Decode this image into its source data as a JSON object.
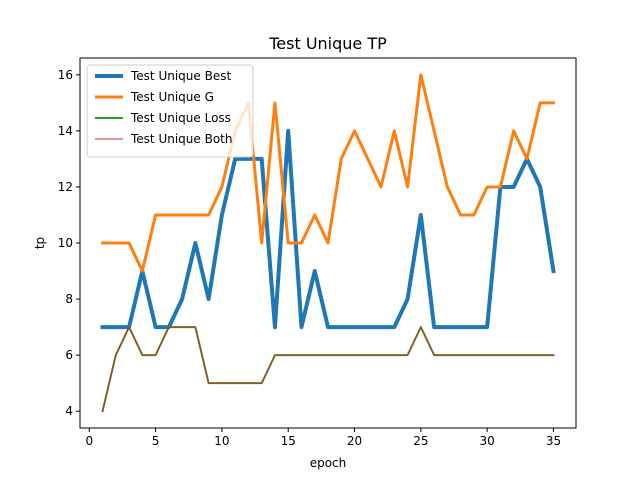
{
  "chart_data": {
    "type": "line",
    "title": "Test Unique TP",
    "xlabel": "epoch",
    "ylabel": "tp",
    "xlim": [
      -0.7,
      36.7
    ],
    "ylim": [
      3.4,
      16.6
    ],
    "xticks": [
      0,
      5,
      10,
      15,
      20,
      25,
      30,
      35
    ],
    "yticks": [
      4,
      6,
      8,
      10,
      12,
      14,
      16
    ],
    "grid": false,
    "legend_position": "top-left",
    "x": [
      1,
      2,
      3,
      4,
      5,
      6,
      7,
      8,
      9,
      10,
      11,
      12,
      13,
      14,
      15,
      16,
      17,
      18,
      19,
      20,
      21,
      22,
      23,
      24,
      25,
      26,
      27,
      28,
      29,
      30,
      31,
      32,
      33,
      34,
      35
    ],
    "series": [
      {
        "name": "Test Unique Best",
        "color": "#1f77b4",
        "line_width": 4,
        "values": [
          7,
          7,
          7,
          9,
          7,
          7,
          8,
          10,
          8,
          11,
          13,
          13,
          13,
          7,
          14,
          7,
          9,
          7,
          7,
          7,
          7,
          7,
          7,
          8,
          11,
          7,
          7,
          7,
          7,
          7,
          12,
          12,
          13,
          12,
          9
        ]
      },
      {
        "name": "Test Unique G",
        "color": "#ff7f0e",
        "line_width": 3,
        "values": [
          10,
          10,
          10,
          9,
          11,
          11,
          11,
          11,
          11,
          12,
          14,
          15,
          10,
          15,
          10,
          10,
          11,
          10,
          13,
          14,
          13,
          12,
          14,
          12,
          16,
          14,
          12,
          11,
          11,
          12,
          12,
          14,
          13,
          15,
          15
        ]
      },
      {
        "name": "Test Unique Loss",
        "color": "#2ca02c",
        "line_width": 2,
        "values": [
          4,
          6,
          7,
          6,
          6,
          7,
          7,
          7,
          5,
          5,
          5,
          5,
          5,
          6,
          6,
          6,
          6,
          6,
          6,
          6,
          6,
          6,
          6,
          6,
          7,
          6,
          6,
          6,
          6,
          6,
          6,
          6,
          6,
          6,
          6
        ]
      },
      {
        "name": "Test Unique Both",
        "color": "#d62728",
        "line_width": 1,
        "values": [
          4,
          6,
          7,
          6,
          6,
          7,
          7,
          7,
          5,
          5,
          5,
          5,
          5,
          6,
          6,
          6,
          6,
          6,
          6,
          6,
          6,
          6,
          6,
          6,
          7,
          6,
          6,
          6,
          6,
          6,
          6,
          6,
          6,
          6,
          6
        ]
      }
    ]
  }
}
